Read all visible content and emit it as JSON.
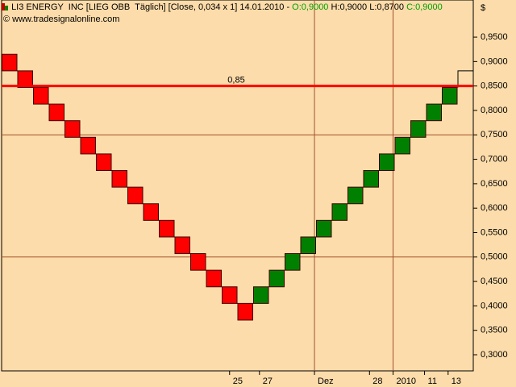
{
  "chart_data": {
    "type": "renko",
    "title": "LI3 ENERGY  INC [LIEG OBB  Täglich] [Close, 0,034 x 1] 14.01.2010 - ",
    "ohlc": [
      "O:0,9000",
      "H:0,9000",
      "L:0,8700",
      "C:0,9000"
    ],
    "subtitle": "© www.tradesignalonline.com",
    "y_unit_label": "$",
    "up_color": "#008000",
    "down_color": "#ff0000",
    "bricks": [
      {
        "low": 0.881,
        "high": 0.915,
        "dir": "down"
      },
      {
        "low": 0.847,
        "high": 0.881,
        "dir": "down"
      },
      {
        "low": 0.813,
        "high": 0.847,
        "dir": "down"
      },
      {
        "low": 0.779,
        "high": 0.813,
        "dir": "down"
      },
      {
        "low": 0.745,
        "high": 0.779,
        "dir": "down"
      },
      {
        "low": 0.711,
        "high": 0.745,
        "dir": "down"
      },
      {
        "low": 0.677,
        "high": 0.711,
        "dir": "down"
      },
      {
        "low": 0.643,
        "high": 0.677,
        "dir": "down"
      },
      {
        "low": 0.609,
        "high": 0.643,
        "dir": "down"
      },
      {
        "low": 0.575,
        "high": 0.609,
        "dir": "down"
      },
      {
        "low": 0.541,
        "high": 0.575,
        "dir": "down"
      },
      {
        "low": 0.507,
        "high": 0.541,
        "dir": "down"
      },
      {
        "low": 0.473,
        "high": 0.507,
        "dir": "down"
      },
      {
        "low": 0.439,
        "high": 0.473,
        "dir": "down"
      },
      {
        "low": 0.405,
        "high": 0.439,
        "dir": "down"
      },
      {
        "low": 0.371,
        "high": 0.405,
        "dir": "down"
      },
      {
        "low": 0.405,
        "high": 0.439,
        "dir": "up"
      },
      {
        "low": 0.439,
        "high": 0.473,
        "dir": "up"
      },
      {
        "low": 0.473,
        "high": 0.507,
        "dir": "up"
      },
      {
        "low": 0.507,
        "high": 0.541,
        "dir": "up"
      },
      {
        "low": 0.541,
        "high": 0.575,
        "dir": "up"
      },
      {
        "low": 0.575,
        "high": 0.609,
        "dir": "up"
      },
      {
        "low": 0.609,
        "high": 0.643,
        "dir": "up"
      },
      {
        "low": 0.643,
        "high": 0.677,
        "dir": "up"
      },
      {
        "low": 0.677,
        "high": 0.711,
        "dir": "up"
      },
      {
        "low": 0.711,
        "high": 0.745,
        "dir": "up"
      },
      {
        "low": 0.745,
        "high": 0.779,
        "dir": "up"
      },
      {
        "low": 0.779,
        "high": 0.813,
        "dir": "up"
      },
      {
        "low": 0.813,
        "high": 0.847,
        "dir": "up"
      }
    ],
    "open_brick": {
      "low": 0.847,
      "high": 0.881
    },
    "ref_line": {
      "value": 0.85,
      "label": "0,85",
      "color": "#ff0000"
    },
    "line_color": "#a0522d",
    "hlines": [
      0.5,
      0.75
    ],
    "vlines": [
      19.9,
      24.9
    ],
    "xlim": [
      0,
      30
    ],
    "ylim": [
      0.267,
      1.026
    ],
    "xticks": [
      {
        "value": 14.5,
        "label": "25"
      },
      {
        "value": 16.4,
        "label": "27"
      },
      {
        "value": 19.9,
        "label": "Dez"
      },
      {
        "value": 23.4,
        "label": "28"
      },
      {
        "value": 24.9,
        "label": "2010"
      },
      {
        "value": 26.9,
        "label": "11"
      },
      {
        "value": 28.4,
        "label": "13"
      }
    ],
    "yticks": [
      {
        "value": 0.95,
        "label": "0,9500"
      },
      {
        "value": 0.9,
        "label": "0,9000"
      },
      {
        "value": 0.85,
        "label": "0,8500"
      },
      {
        "value": 0.8,
        "label": "0,8000"
      },
      {
        "value": 0.75,
        "label": "0,7500"
      },
      {
        "value": 0.7,
        "label": "0,7000"
      },
      {
        "value": 0.65,
        "label": "0,6500"
      },
      {
        "value": 0.6,
        "label": "0,6000"
      },
      {
        "value": 0.55,
        "label": "0,5500"
      },
      {
        "value": 0.5,
        "label": "0,5000"
      },
      {
        "value": 0.45,
        "label": "0,4500"
      },
      {
        "value": 0.4,
        "label": "0,4000"
      },
      {
        "value": 0.35,
        "label": "0,3500"
      },
      {
        "value": 0.3,
        "label": "0,3000"
      }
    ]
  }
}
